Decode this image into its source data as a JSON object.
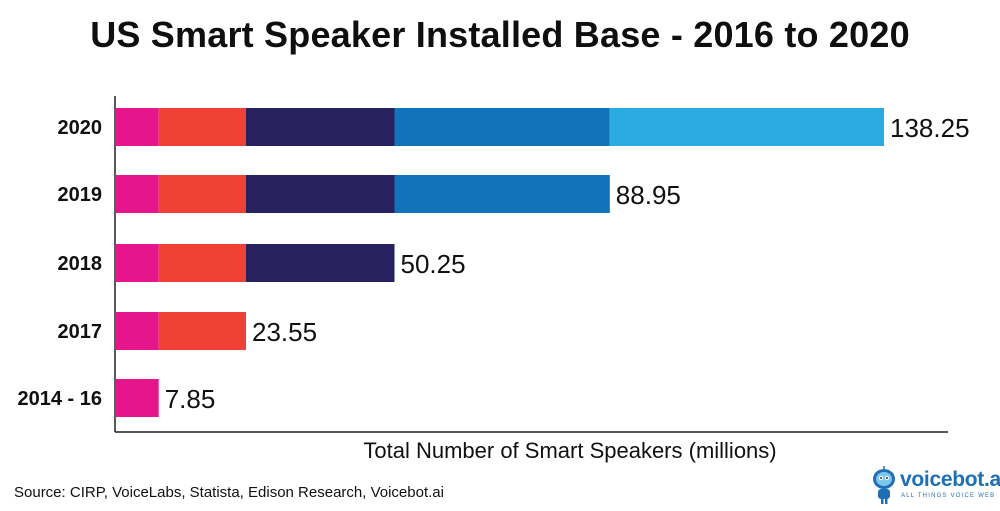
{
  "chart_data": {
    "type": "bar",
    "orientation": "horizontal",
    "stacked": true,
    "title": "US Smart Speaker Installed Base - 2016 to 2020",
    "xlabel": "Total Number of Smart Speakers (millions)",
    "ylabel": "",
    "categories": [
      "2020",
      "2019",
      "2018",
      "2017",
      "2014 - 16"
    ],
    "totals": [
      "138.25",
      "88.95",
      "50.25",
      "23.55",
      "7.85"
    ],
    "series": [
      {
        "name": "2014 - 16",
        "color": "#e6158c",
        "values": [
          7.85,
          7.85,
          7.85,
          7.85,
          7.85
        ]
      },
      {
        "name": "2017",
        "color": "#ef4136",
        "values": [
          15.7,
          15.7,
          15.7,
          15.7,
          0
        ]
      },
      {
        "name": "2018",
        "color": "#27215f",
        "values": [
          26.7,
          26.7,
          26.7,
          0,
          0
        ]
      },
      {
        "name": "2019",
        "color": "#1273ba",
        "values": [
          38.7,
          38.7,
          0,
          0,
          0
        ]
      },
      {
        "name": "2020",
        "color": "#29abe2",
        "values": [
          49.3,
          0,
          0,
          0,
          0
        ]
      }
    ],
    "xlim": [
      0,
      150
    ],
    "grid": false,
    "legend": "none"
  },
  "source_text": "Source: CIRP, VoiceLabs, Statista, Edison Research, Voicebot.ai",
  "logo": {
    "name": "voicebot.ai",
    "tagline": "ALL THINGS VOICE WEB",
    "color": "#1f6fb6"
  }
}
